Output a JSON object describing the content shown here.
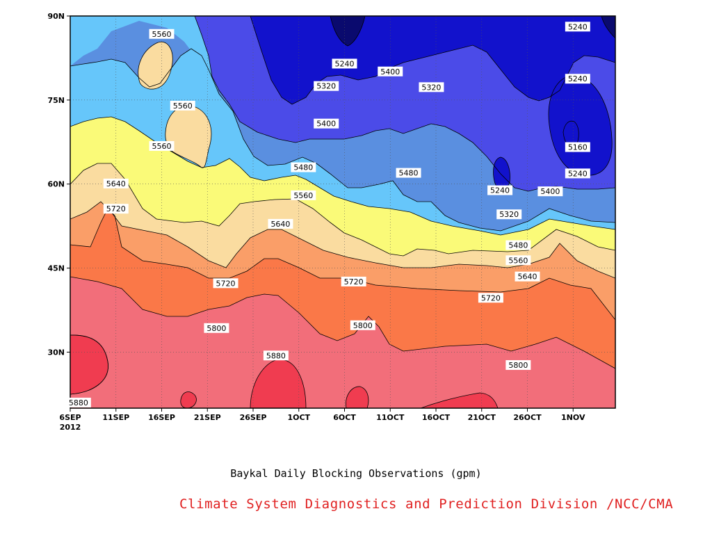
{
  "chart_data": {
    "type": "contour",
    "title": "Baykal Daily Blocking Observations (gpm)",
    "credit": "Climate System Diagnostics and Prediction Division /NCC/CMA",
    "units": "gpm",
    "x_ticks": [
      "6SEP",
      "11SEP",
      "16SEP",
      "21SEP",
      "26SEP",
      "1OCT",
      "6OCT",
      "11OCT",
      "16OCT",
      "21OCT",
      "26OCT",
      "1NOV"
    ],
    "x_year": "2012",
    "x_range_days": [
      0,
      59.5
    ],
    "y_ticks": [
      "30N",
      "45N",
      "60N",
      "75N",
      "90N"
    ],
    "y_tick_values": [
      30,
      45,
      60,
      75,
      90
    ],
    "ylim": [
      20,
      90
    ],
    "contour_levels": [
      5160,
      5240,
      5320,
      5400,
      5480,
      5560,
      5640,
      5720,
      5800,
      5880
    ],
    "contour_labels": [
      {
        "text": "5880",
        "day": 0.9,
        "lat": 21.0
      },
      {
        "text": "5880",
        "day": 22.5,
        "lat": 29.4
      },
      {
        "text": "5800",
        "day": 16.0,
        "lat": 34.3
      },
      {
        "text": "5800",
        "day": 32.0,
        "lat": 34.8
      },
      {
        "text": "5800",
        "day": 49.0,
        "lat": 27.7
      },
      {
        "text": "5720",
        "day": 5.0,
        "lat": 55.6
      },
      {
        "text": "5720",
        "day": 17.0,
        "lat": 42.3
      },
      {
        "text": "5720",
        "day": 31.0,
        "lat": 42.6
      },
      {
        "text": "5720",
        "day": 46.0,
        "lat": 39.7
      },
      {
        "text": "5640",
        "day": 5.0,
        "lat": 60.1
      },
      {
        "text": "5640",
        "day": 23.0,
        "lat": 52.9
      },
      {
        "text": "5640",
        "day": 50.0,
        "lat": 43.5
      },
      {
        "text": "5560",
        "day": 10.0,
        "lat": 86.8
      },
      {
        "text": "5560",
        "day": 12.3,
        "lat": 74.0
      },
      {
        "text": "5560",
        "day": 10.0,
        "lat": 66.8
      },
      {
        "text": "5560",
        "day": 25.5,
        "lat": 58.0
      },
      {
        "text": "5560",
        "day": 49.0,
        "lat": 46.4
      },
      {
        "text": "5480",
        "day": 25.5,
        "lat": 63.0
      },
      {
        "text": "5480",
        "day": 37.0,
        "lat": 62.0
      },
      {
        "text": "5480",
        "day": 49.0,
        "lat": 49.1
      },
      {
        "text": "5400",
        "day": 28.0,
        "lat": 70.8
      },
      {
        "text": "5400",
        "day": 35.0,
        "lat": 80.1
      },
      {
        "text": "5400",
        "day": 52.5,
        "lat": 58.7
      },
      {
        "text": "5320",
        "day": 28.0,
        "lat": 77.5
      },
      {
        "text": "5320",
        "day": 39.5,
        "lat": 77.3
      },
      {
        "text": "5320",
        "day": 48.0,
        "lat": 54.6
      },
      {
        "text": "5240",
        "day": 30.0,
        "lat": 81.5
      },
      {
        "text": "5240",
        "day": 47.0,
        "lat": 58.9
      },
      {
        "text": "5240",
        "day": 55.5,
        "lat": 88.1
      },
      {
        "text": "5240",
        "day": 55.5,
        "lat": 78.8
      },
      {
        "text": "5240",
        "day": 55.5,
        "lat": 61.9
      },
      {
        "text": "5160",
        "day": 55.5,
        "lat": 66.6
      }
    ],
    "grid": "dotted"
  },
  "colors": {
    "le5160": "#0a0a6e",
    "b5160": "#1212cc",
    "b5240": "#4b4be8",
    "b5320": "#5a8fe0",
    "b5400": "#66c6fa",
    "b5480": "#fafa78",
    "b5560": "#fadca0",
    "b5640": "#fa9e68",
    "b5720": "#fa7848",
    "b5800": "#f26e7a",
    "ge5880": "#f03c50",
    "credit": "#e02020"
  }
}
